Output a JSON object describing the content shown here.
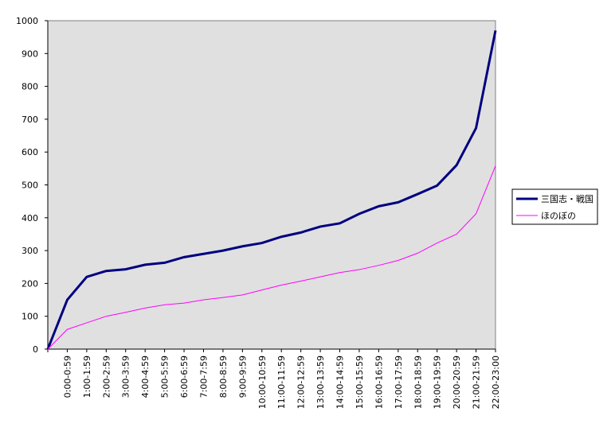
{
  "chart_data": {
    "type": "line",
    "categories": [
      null,
      "0:00-0:59",
      "1:00-1:59",
      "2:00-2:59",
      "3:00-3:59",
      "4:00-4:59",
      "5:00-5:59",
      "6:00-6:59",
      "7:00-7:59",
      "8:00-8:59",
      "9:00-9:59",
      "10:00-10:59",
      "11:00-11:59",
      "12:00-12:59",
      "13:00-13:59",
      "14:00-14:59",
      "15:00-15:59",
      "16:00-16:59",
      "17:00-17:59",
      "18:00-18:59",
      "19:00-19:59",
      "20:00-20:59",
      "21:00-21:59",
      "22:00-23:00"
    ],
    "series": [
      {
        "name": "三国志・戦国",
        "color": "#000080",
        "values": [
          0,
          150,
          220,
          238,
          243,
          257,
          263,
          280,
          290,
          300,
          313,
          323,
          342,
          355,
          373,
          383,
          412,
          435,
          447,
          472,
          498,
          560,
          673,
          970
        ]
      },
      {
        "name": "ほのぼの",
        "color": "#ff00ff",
        "values": [
          0,
          60,
          80,
          100,
          112,
          125,
          135,
          140,
          150,
          157,
          165,
          180,
          195,
          207,
          220,
          233,
          242,
          255,
          270,
          292,
          323,
          350,
          412,
          558
        ]
      }
    ],
    "ylim": [
      0,
      1000
    ],
    "yticks": [
      0,
      100,
      200,
      300,
      400,
      500,
      600,
      700,
      800,
      900,
      1000
    ],
    "legend": "right",
    "plot_background": "#e0e0e0"
  }
}
